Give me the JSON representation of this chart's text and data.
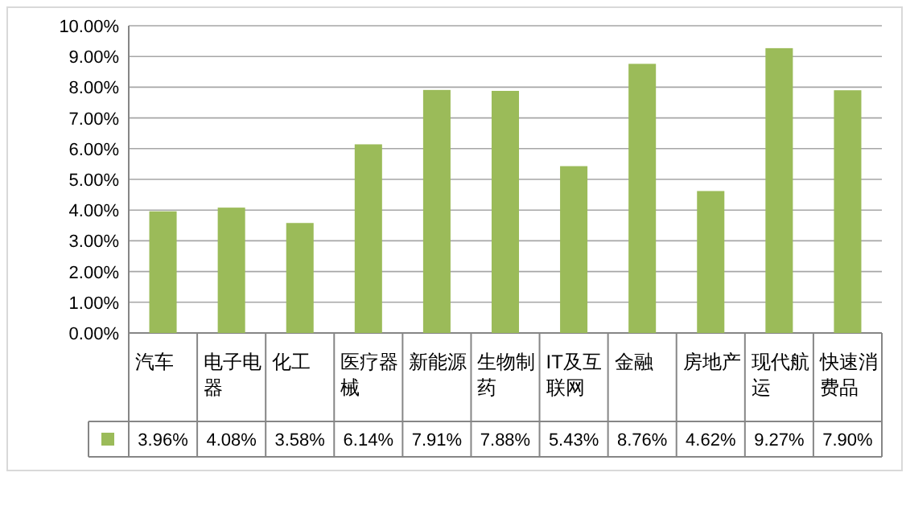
{
  "chart_data": {
    "type": "bar",
    "categories": [
      "汽车",
      "电子电器",
      "化工",
      "医疗器械",
      "新能源",
      "生物制药",
      "IT及互联网",
      "金融",
      "房地产",
      "现代航运",
      "快速消费品"
    ],
    "series": [
      {
        "color": "#9bbb59",
        "values": [
          3.96,
          4.08,
          3.58,
          6.14,
          7.91,
          7.88,
          5.43,
          8.76,
          4.62,
          9.27,
          7.9
        ],
        "value_labels": [
          "3.96%",
          "4.08%",
          "3.58%",
          "6.14%",
          "7.91%",
          "7.88%",
          "5.43%",
          "8.76%",
          "4.62%",
          "9.27%",
          "7.90%"
        ]
      }
    ],
    "ylim": [
      0,
      10
    ],
    "yticks": [
      {
        "value": 0,
        "label": "0.00%"
      },
      {
        "value": 1,
        "label": "1.00%"
      },
      {
        "value": 2,
        "label": "2.00%"
      },
      {
        "value": 3,
        "label": "3.00%"
      },
      {
        "value": 4,
        "label": "4.00%"
      },
      {
        "value": 5,
        "label": "5.00%"
      },
      {
        "value": 6,
        "label": "6.00%"
      },
      {
        "value": 7,
        "label": "7.00%"
      },
      {
        "value": 8,
        "label": "8.00%"
      },
      {
        "value": 9,
        "label": "9.00%"
      },
      {
        "value": 10,
        "label": "10.00%"
      }
    ],
    "grid": "y"
  }
}
